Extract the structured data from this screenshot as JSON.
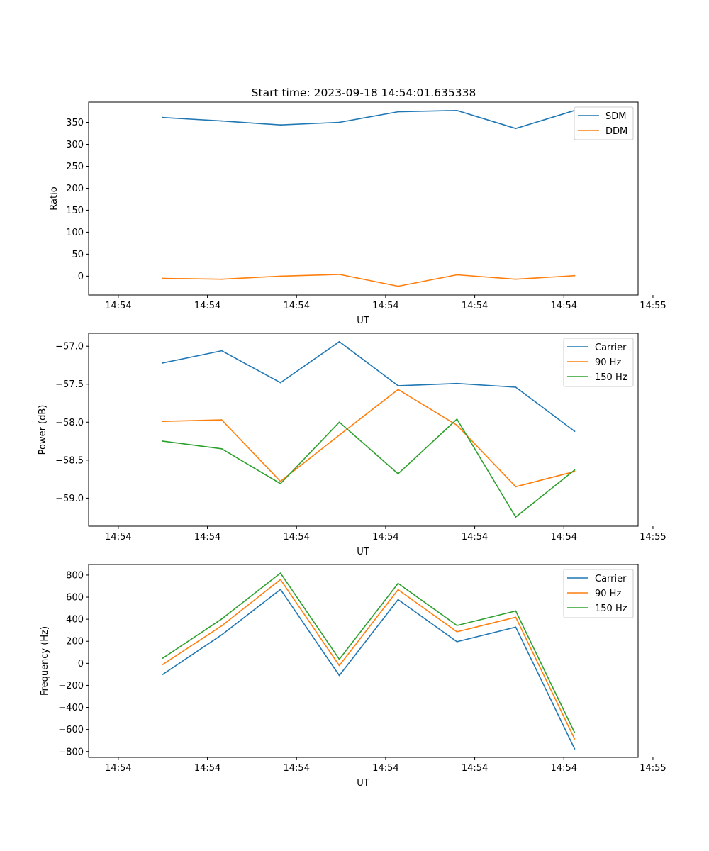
{
  "figure_title": "Start time: 2023-09-18 14:54:01.635338",
  "chart_data": [
    {
      "type": "line",
      "title": "Start time: 2023-09-18 14:54:01.635338",
      "xlabel": "UT",
      "ylabel": "Ratio",
      "xlim": [
        -0.5,
        8.75
      ],
      "xticks": [
        0,
        1.5,
        3,
        4.5,
        6,
        7.5,
        9
      ],
      "xtick_labels": [
        "14:54",
        "14:54",
        "14:54",
        "14:54",
        "14:54",
        "14:54",
        "14:55"
      ],
      "ylim": [
        -43,
        396
      ],
      "yticks": [
        0,
        50,
        100,
        150,
        200,
        250,
        300,
        350
      ],
      "ytick_labels": [
        "0",
        "50",
        "100",
        "150",
        "200",
        "250",
        "300",
        "350"
      ],
      "x": [
        0.75,
        1.74,
        2.73,
        3.72,
        4.71,
        5.7,
        6.69,
        7.68
      ],
      "legend_loc": "upper right",
      "series": [
        {
          "name": "SDM",
          "color": "#1f77b4",
          "values": [
            361,
            353,
            344,
            350,
            374,
            377,
            336,
            377
          ]
        },
        {
          "name": "DDM",
          "color": "#ff7f0e",
          "values": [
            -5,
            -7,
            0,
            4,
            -23,
            3,
            -7,
            1
          ]
        }
      ]
    },
    {
      "type": "line",
      "xlabel": "UT",
      "ylabel": "Power (dB)",
      "xlim": [
        -0.5,
        8.75
      ],
      "xticks": [
        0,
        1.5,
        3,
        4.5,
        6,
        7.5,
        9
      ],
      "xtick_labels": [
        "14:54",
        "14:54",
        "14:54",
        "14:54",
        "14:54",
        "14:54",
        "14:55"
      ],
      "ylim": [
        -59.37,
        -56.83
      ],
      "yticks": [
        -59.0,
        -58.5,
        -58.0,
        -57.5,
        -57.0
      ],
      "ytick_labels": [
        "−59.0",
        "−58.5",
        "−58.0",
        "−57.5",
        "−57.0"
      ],
      "x": [
        0.75,
        1.74,
        2.73,
        3.72,
        4.71,
        5.7,
        6.69,
        7.68
      ],
      "legend_loc": "upper right",
      "series": [
        {
          "name": "Carrier",
          "color": "#1f77b4",
          "values": [
            -57.22,
            -57.06,
            -57.48,
            -56.94,
            -57.52,
            -57.49,
            -57.54,
            -58.12
          ]
        },
        {
          "name": "90 Hz",
          "color": "#ff7f0e",
          "values": [
            -57.99,
            -57.97,
            -58.78,
            -58.17,
            -57.57,
            -58.04,
            -58.85,
            -58.65
          ]
        },
        {
          "name": "150 Hz",
          "color": "#2ca02c",
          "values": [
            -58.25,
            -58.35,
            -58.81,
            -58.0,
            -58.68,
            -57.96,
            -59.25,
            -58.63
          ]
        }
      ]
    },
    {
      "type": "line",
      "xlabel": "UT",
      "ylabel": "Frequency (Hz)",
      "xlim": [
        -0.5,
        8.75
      ],
      "xticks": [
        0,
        1.5,
        3,
        4.5,
        6,
        7.5,
        9
      ],
      "xtick_labels": [
        "14:54",
        "14:54",
        "14:54",
        "14:54",
        "14:54",
        "14:54",
        "14:55"
      ],
      "ylim": [
        -853,
        896
      ],
      "yticks": [
        -800,
        -600,
        -400,
        -200,
        0,
        200,
        400,
        600,
        800
      ],
      "ytick_labels": [
        "−800",
        "−600",
        "−400",
        "−200",
        "0",
        "200",
        "400",
        "600",
        "800"
      ],
      "x": [
        0.75,
        1.74,
        2.73,
        3.72,
        4.71,
        5.7,
        6.69,
        7.68
      ],
      "legend_loc": "upper right",
      "series": [
        {
          "name": "Carrier",
          "color": "#1f77b4",
          "values": [
            -100,
            258,
            670,
            -110,
            578,
            196,
            328,
            -775
          ]
        },
        {
          "name": "90 Hz",
          "color": "#ff7f0e",
          "values": [
            -10,
            340,
            760,
            -20,
            668,
            286,
            418,
            -685
          ]
        },
        {
          "name": "150 Hz",
          "color": "#2ca02c",
          "values": [
            47,
            402,
            818,
            37,
            725,
            343,
            475,
            -628
          ]
        }
      ]
    }
  ]
}
